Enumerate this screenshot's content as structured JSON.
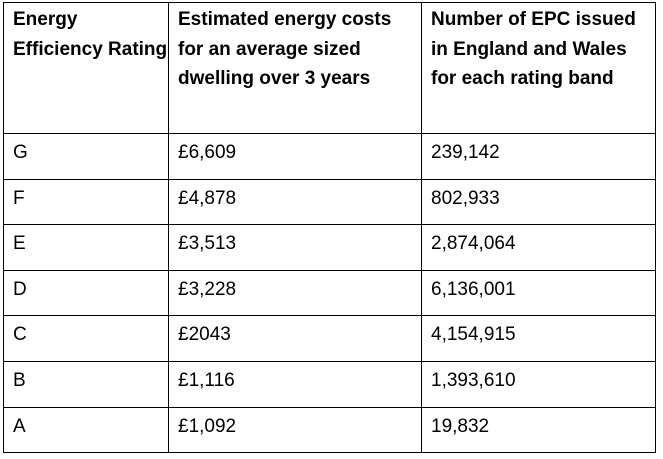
{
  "table": {
    "headers": [
      "Energy Efficiency Rating",
      "Estimated energy costs for an average sized dwelling over 3 years",
      "Number of EPC issued in England and Wales for each rating band"
    ],
    "rows": [
      {
        "rating": "G",
        "cost": "£6,609",
        "count": "239,142"
      },
      {
        "rating": "F",
        "cost": "£4,878",
        "count": "802,933"
      },
      {
        "rating": "E",
        "cost": "£3,513",
        "count": "2,874,064"
      },
      {
        "rating": "D",
        "cost": "£3,228",
        "count": "6,136,001"
      },
      {
        "rating": "C",
        "cost": "£2043",
        "count": "4,154,915"
      },
      {
        "rating": "B",
        "cost": "£1,116",
        "count": "1,393,610"
      },
      {
        "rating": "A",
        "cost": "£1,092",
        "count": "19,832"
      }
    ]
  }
}
